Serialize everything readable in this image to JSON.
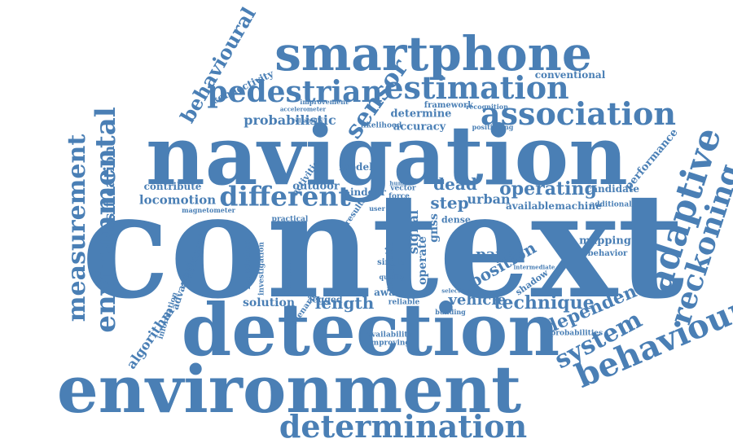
{
  "cloud": {
    "color": "#4a7fb5",
    "words": [
      {
        "text": "context"
      },
      {
        "text": "navigation"
      },
      {
        "text": "detection"
      },
      {
        "text": "environment"
      },
      {
        "text": "smartphone"
      },
      {
        "text": "determination"
      },
      {
        "text": "estimation"
      },
      {
        "text": "association"
      },
      {
        "text": "pedestrian"
      },
      {
        "text": "sensor"
      },
      {
        "text": "different"
      },
      {
        "text": "adaptive"
      },
      {
        "text": "reckoning"
      },
      {
        "text": "behaviour"
      },
      {
        "text": "system"
      },
      {
        "text": "environmental"
      },
      {
        "text": "measurement"
      },
      {
        "text": "behavioural"
      },
      {
        "text": "classification"
      },
      {
        "text": "dependent"
      },
      {
        "text": "technique"
      },
      {
        "text": "operating"
      },
      {
        "text": "length"
      },
      {
        "text": "dead"
      },
      {
        "text": "step"
      },
      {
        "text": "position"
      },
      {
        "text": "paper"
      },
      {
        "text": "vehicle"
      },
      {
        "text": "probabilistic"
      },
      {
        "text": "locomotion"
      },
      {
        "text": "algorithm"
      },
      {
        "text": "accuracy"
      },
      {
        "text": "determine"
      },
      {
        "text": "performance"
      },
      {
        "text": "mapping"
      },
      {
        "text": "solution"
      },
      {
        "text": "contribute"
      },
      {
        "text": "connectivity"
      },
      {
        "text": "conventional"
      },
      {
        "text": "candidate"
      },
      {
        "text": "outdoor"
      },
      {
        "text": "indoor"
      },
      {
        "text": "urban"
      },
      {
        "text": "available"
      },
      {
        "text": "machine"
      },
      {
        "text": "magnetic"
      },
      {
        "text": "intelligent"
      },
      {
        "text": "advanced"
      },
      {
        "text": "hidden"
      },
      {
        "text": "foundation"
      },
      {
        "text": "investigation"
      },
      {
        "text": "information"
      },
      {
        "text": "shadow"
      },
      {
        "text": "behavior"
      },
      {
        "text": "probabilities"
      },
      {
        "text": "framework"
      },
      {
        "text": "recognition"
      },
      {
        "text": "likelihood"
      },
      {
        "text": "positioning"
      },
      {
        "text": "improvement"
      },
      {
        "text": "accelerometer"
      },
      {
        "text": "reliability"
      },
      {
        "text": "magnetometer"
      },
      {
        "text": "activities"
      },
      {
        "text": "legged"
      },
      {
        "text": "reliable"
      },
      {
        "text": "availability"
      },
      {
        "text": "improving"
      },
      {
        "text": "aware"
      },
      {
        "text": "building"
      },
      {
        "text": "signal"
      },
      {
        "text": "gnss"
      },
      {
        "text": "model"
      },
      {
        "text": "vector"
      },
      {
        "text": "force"
      },
      {
        "text": "dense"
      },
      {
        "text": "single"
      },
      {
        "text": "selection"
      },
      {
        "text": "additional"
      },
      {
        "text": "scenario"
      },
      {
        "text": "practical"
      },
      {
        "text": "quality"
      },
      {
        "text": "operate"
      },
      {
        "text": "intermediate"
      },
      {
        "text": "results"
      },
      {
        "text": "human"
      },
      {
        "text": "user"
      }
    ]
  }
}
